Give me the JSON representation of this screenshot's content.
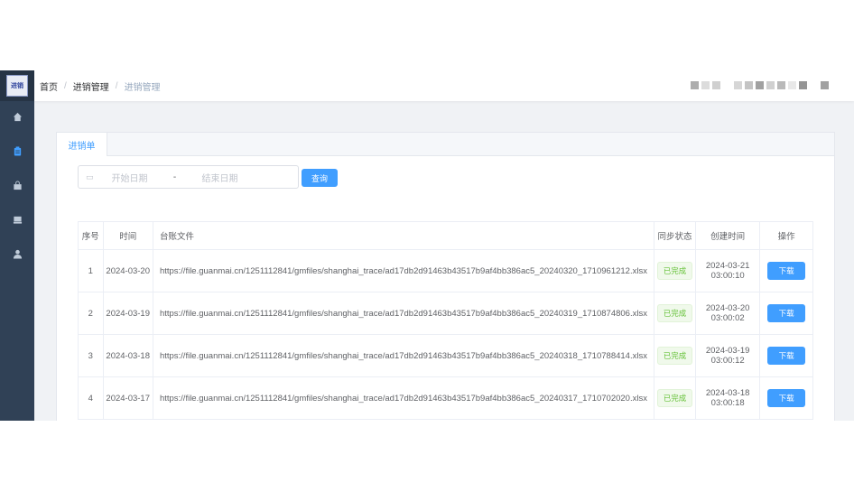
{
  "logo": {
    "text": "进销存"
  },
  "sidebar": {
    "items": [
      {
        "icon": "home-icon"
      },
      {
        "icon": "clipboard-icon",
        "active": true
      },
      {
        "icon": "shopping-bag-icon"
      },
      {
        "icon": "inbox-icon"
      },
      {
        "icon": "user-icon"
      }
    ]
  },
  "breadcrumb": [
    "首页",
    "进销管理",
    "进销管理"
  ],
  "tab": "进销单",
  "filter": {
    "start_placeholder": "开始日期",
    "separator": "-",
    "end_placeholder": "结束日期",
    "query_label": "查询"
  },
  "table": {
    "columns": [
      "序号",
      "时间",
      "台账文件",
      "同步状态",
      "创建时间",
      "操作"
    ],
    "rows": [
      {
        "no": "1",
        "date": "2024-03-20",
        "file": "https://file.guanmai.cn/1251112841/gmfiles/shanghai_trace/ad17db2d91463b43517b9af4bb386ac5_20240320_1710961212.xlsx",
        "status": "已完成",
        "created": "2024-03-21 03:00:10",
        "action": "下载"
      },
      {
        "no": "2",
        "date": "2024-03-19",
        "file": "https://file.guanmai.cn/1251112841/gmfiles/shanghai_trace/ad17db2d91463b43517b9af4bb386ac5_20240319_1710874806.xlsx",
        "status": "已完成",
        "created": "2024-03-20 03:00:02",
        "action": "下载"
      },
      {
        "no": "3",
        "date": "2024-03-18",
        "file": "https://file.guanmai.cn/1251112841/gmfiles/shanghai_trace/ad17db2d91463b43517b9af4bb386ac5_20240318_1710788414.xlsx",
        "status": "已完成",
        "created": "2024-03-19 03:00:12",
        "action": "下载"
      },
      {
        "no": "4",
        "date": "2024-03-17",
        "file": "https://file.guanmai.cn/1251112841/gmfiles/shanghai_trace/ad17db2d91463b43517b9af4bb386ac5_20240317_1710702020.xlsx",
        "status": "已完成",
        "created": "2024-03-18 03:00:18",
        "action": "下载"
      }
    ]
  },
  "colors": {
    "sidebar": "#304156",
    "primary": "#409eff",
    "success": "#67c23a"
  }
}
